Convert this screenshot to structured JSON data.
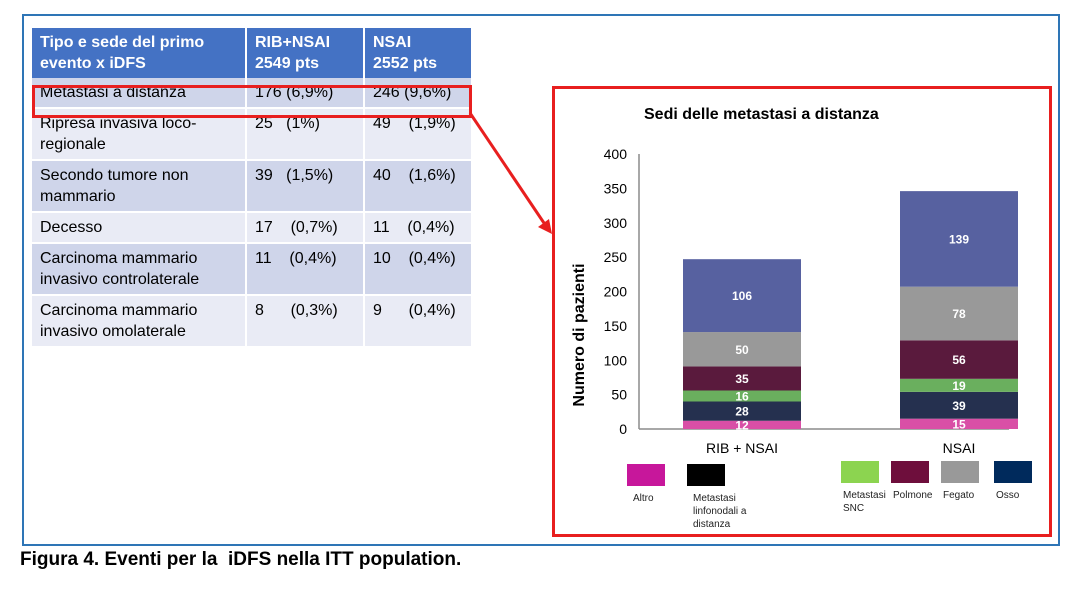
{
  "table": {
    "headers": [
      [
        "Tipo e sede del primo",
        "evento x iDFS"
      ],
      [
        "RIB+NSAI",
        "2549 pts"
      ],
      [
        "NSAI",
        "2552 pts"
      ]
    ],
    "rows": [
      {
        "event": [
          "Metastasi a distanza"
        ],
        "rib": "176 (6,9%)",
        "nsai": "246 (9,6%)"
      },
      {
        "event": [
          "Ripresa invasiva loco-",
          "regionale"
        ],
        "rib": "25   (1%)",
        "nsai": "49    (1,9%)"
      },
      {
        "event": [
          "Secondo tumore non",
          "mammario"
        ],
        "rib": "39   (1,5%)",
        "nsai": "40    (1,6%)"
      },
      {
        "event": [
          "Decesso"
        ],
        "rib": "17    (0,7%)",
        "nsai": "11    (0,4%)"
      },
      {
        "event": [
          "Carcinoma mammario",
          "invasivo controlaterale"
        ],
        "rib": "11    (0,4%)",
        "nsai": "10    (0,4%)"
      },
      {
        "event": [
          "Carcinoma mammario",
          "invasivo omolaterale"
        ],
        "rib": "8      (0,3%)",
        "nsai": "9      (0,4%)"
      }
    ]
  },
  "chart_data": {
    "type": "bar",
    "stacked": true,
    "title": "Sedi delle metastasi a distanza",
    "xlabel": "",
    "ylabel": "Numero di pazienti",
    "ylim": [
      0,
      400
    ],
    "yticks": [
      0,
      50,
      100,
      150,
      200,
      250,
      300,
      350,
      400
    ],
    "categories": [
      "RIB + NSAI",
      "NSAI"
    ],
    "series": [
      {
        "name": "Altro",
        "color": "#d94fa6",
        "values": [
          12,
          15
        ]
      },
      {
        "name": "Metastasi linfonodali a distanza",
        "color": "#25304f",
        "values": [
          28,
          39
        ]
      },
      {
        "name": "Metastasi SNC",
        "color": "#6aaf5e",
        "values": [
          16,
          19
        ]
      },
      {
        "name": "Polmone",
        "color": "#5a1a3d",
        "values": [
          35,
          56
        ]
      },
      {
        "name": "Fegato",
        "color": "#999999",
        "values": [
          50,
          78
        ]
      },
      {
        "name": "Osso",
        "color": "#5761a0",
        "values": [
          106,
          139
        ]
      }
    ],
    "legend": [
      {
        "lines": [
          "Altro"
        ],
        "color": "#c7179b"
      },
      {
        "lines": [
          "Metastasi",
          "linfonodali a",
          "distanza"
        ],
        "color": "#000000"
      },
      {
        "lines": [
          "Metastasi",
          "SNC"
        ],
        "color": "#8cd450"
      },
      {
        "lines": [
          "Polmone"
        ],
        "color": "#6e0e3c"
      },
      {
        "lines": [
          "Fegato"
        ],
        "color": "#999999"
      },
      {
        "lines": [
          "Osso"
        ],
        "color": "#002a5c"
      }
    ],
    "legend_placement": "bottom",
    "grid": false
  },
  "caption": "Figura 4. Eventi per la  iDFS nella ITT population."
}
